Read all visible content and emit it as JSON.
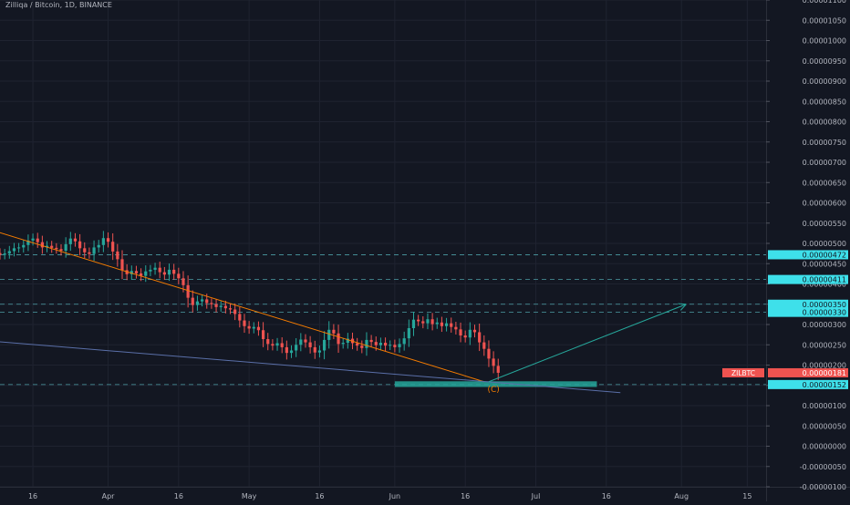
{
  "header": {
    "title": "Zilliqa / Bitcoin, 1D, BINANCE"
  },
  "colors": {
    "background": "#131722",
    "grid": "#1f2330",
    "axis_text": "#b2b5be",
    "up": "#26a69a",
    "down": "#ef5350",
    "trendline_orange": "#f57c00",
    "trendline_blue": "#5a6fa8",
    "target_arrow": "#26a69a",
    "level_line": "#5fc9d0",
    "label_cyan": "#3ee0ea",
    "current_price": "#ef5350"
  },
  "chart_data": {
    "type": "candlestick",
    "title": "Zilliqa / Bitcoin, 1D, BINANCE",
    "y_axis": {
      "ticks": [
        "0.00001100",
        "0.00001050",
        "0.00001000",
        "0.00000950",
        "0.00000900",
        "0.00000850",
        "0.00000800",
        "0.00000750",
        "0.00000700",
        "0.00000650",
        "0.00000600",
        "0.00000550",
        "0.00000500",
        "0.00000450",
        "0.00000400",
        "0.00000350",
        "0.00000300",
        "0.00000250",
        "0.00000200",
        "0.00000150",
        "0.00000100",
        "0.00000050",
        "0.00000000",
        "-0.00000050",
        "-0.00000100"
      ],
      "range": [
        -1e-06,
        1.1e-05
      ]
    },
    "x_axis": {
      "ticks": [
        "16",
        "Apr",
        "16",
        "May",
        "16",
        "Jun",
        "16",
        "Jul",
        "16",
        "Aug",
        "15"
      ],
      "tick_dates": [
        "2020-03-16",
        "2020-04-01",
        "2020-04-16",
        "2020-05-01",
        "2020-05-16",
        "2020-06-01",
        "2020-06-16",
        "2020-07-01",
        "2020-07-16",
        "2020-08-01",
        "2020-08-15"
      ],
      "range": [
        "2020-03-09",
        "2020-08-19"
      ]
    },
    "closes": [
      4.83e-06,
      4.79e-06,
      4.85e-06,
      4.77e-06,
      4.86e-06,
      4.8e-06,
      4.84e-06,
      4.76e-06,
      4.72e-06,
      4.75e-06,
      4.81e-06,
      4.88e-06,
      4.9e-06,
      4.96e-06,
      5.07e-06,
      5.12e-06,
      5.03e-06,
      4.9e-06,
      4.94e-06,
      4.89e-06,
      4.86e-06,
      4.82e-06,
      4.98e-06,
      5.12e-06,
      5.05e-06,
      4.88e-06,
      4.78e-06,
      4.74e-06,
      4.9e-06,
      4.96e-06,
      5.13e-06,
      5.04e-06,
      4.8e-06,
      4.61e-06,
      4.34e-06,
      4.24e-06,
      4.32e-06,
      4.26e-06,
      4.2e-06,
      4.31e-06,
      4.35e-06,
      4.4e-06,
      4.29e-06,
      4.23e-06,
      4.35e-06,
      4.25e-06,
      4.14e-06,
      3.97e-06,
      3.66e-06,
      3.48e-06,
      3.57e-06,
      3.62e-06,
      3.53e-06,
      3.5e-06,
      3.43e-06,
      3.46e-06,
      3.4e-06,
      3.37e-06,
      3.26e-06,
      3.1e-06,
      2.96e-06,
      2.9e-06,
      2.94e-06,
      2.86e-06,
      2.64e-06,
      2.52e-06,
      2.48e-06,
      2.54e-06,
      2.44e-06,
      2.3e-06,
      2.36e-06,
      2.5e-06,
      2.63e-06,
      2.56e-06,
      2.44e-06,
      2.31e-06,
      2.36e-06,
      2.62e-06,
      2.87e-06,
      2.78e-06,
      2.52e-06,
      2.55e-06,
      2.65e-06,
      2.54e-06,
      2.48e-06,
      2.42e-06,
      2.62e-06,
      2.57e-06,
      2.49e-06,
      2.55e-06,
      2.48e-06,
      2.5e-06,
      2.44e-06,
      2.52e-06,
      2.66e-06,
      2.91e-06,
      3.12e-06,
      3.08e-06,
      3.03e-06,
      3.13e-06,
      3.01e-06,
      3.05e-06,
      2.96e-06,
      3.03e-06,
      2.94e-06,
      2.88e-06,
      2.73e-06,
      2.68e-06,
      2.87e-06,
      2.81e-06,
      2.56e-06,
      2.4e-06,
      2.16e-06,
      1.98e-06,
      1.81e-06
    ],
    "first_candle_date": "2020-03-01",
    "current_price": {
      "label": "ZILBTC",
      "value": "0.00000181"
    },
    "horizontal_levels": [
      {
        "value": 4.72e-06,
        "label": "0.00000472"
      },
      {
        "value": 4.11e-06,
        "label": "0.00000411"
      },
      {
        "value": 3.5e-06,
        "label": "0.00000350"
      },
      {
        "value": 3.3e-06,
        "label": "0.00000330"
      },
      {
        "value": 1.52e-06,
        "label": "0.00000152"
      }
    ],
    "support_zone": {
      "from": "2020-06-01",
      "to": "2020-07-14",
      "top": 1.6e-06,
      "bottom": 1.46e-06
    },
    "annotation": {
      "text": "(C)",
      "date": "2020-06-22",
      "value": 1.34e-06
    },
    "trendlines": [
      {
        "name": "orange",
        "from": {
          "date": "2020-03-01",
          "value": 5.55e-06
        },
        "to": {
          "date": "2020-06-20",
          "value": 1.59e-06
        }
      },
      {
        "name": "blue",
        "from": {
          "date": "2020-03-01",
          "value": 2.65e-06
        },
        "to": {
          "date": "2020-07-19",
          "value": 1.32e-06
        }
      },
      {
        "name": "target",
        "from": {
          "date": "2020-06-21",
          "value": 1.59e-06
        },
        "to": {
          "date": "2020-08-02",
          "value": 3.5e-06
        }
      }
    ],
    "grid": true,
    "scale": "linear"
  }
}
